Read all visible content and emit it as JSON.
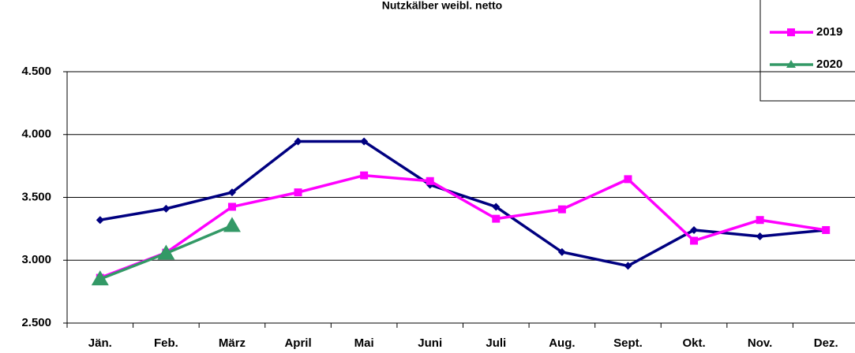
{
  "chart_data": {
    "type": "line",
    "title": "Nutzkälber weibl. netto",
    "categories": [
      "Jän.",
      "Feb.",
      "März",
      "April",
      "Mai",
      "Juni",
      "Juli",
      "Aug.",
      "Sept.",
      "Okt.",
      "Nov.",
      "Dez."
    ],
    "series": [
      {
        "color": "#000080",
        "marker": "diamond",
        "values": [
          3320,
          3410,
          3540,
          3945,
          3945,
          3600,
          3425,
          3065,
          2955,
          3240,
          3190,
          3240
        ]
      },
      {
        "name": "2019",
        "color": "#ff00ff",
        "marker": "square",
        "values": [
          2860,
          3060,
          3425,
          3540,
          3675,
          3630,
          3330,
          3405,
          3645,
          3155,
          3320,
          3240
        ]
      },
      {
        "name": "2020",
        "color": "#339966",
        "marker": "triangle",
        "values": [
          2850,
          3055,
          3275,
          null,
          null,
          null,
          null,
          null,
          null,
          null,
          null,
          null
        ]
      }
    ],
    "ylim": [
      2500,
      4500
    ],
    "yticks": [
      {
        "value": 2500,
        "label": "2.500"
      },
      {
        "value": 3000,
        "label": "3.000"
      },
      {
        "value": 3500,
        "label": "3.500"
      },
      {
        "value": 4000,
        "label": "4.000"
      },
      {
        "value": 4500,
        "label": "4.500"
      }
    ],
    "grid": true,
    "legend": "top-right"
  }
}
